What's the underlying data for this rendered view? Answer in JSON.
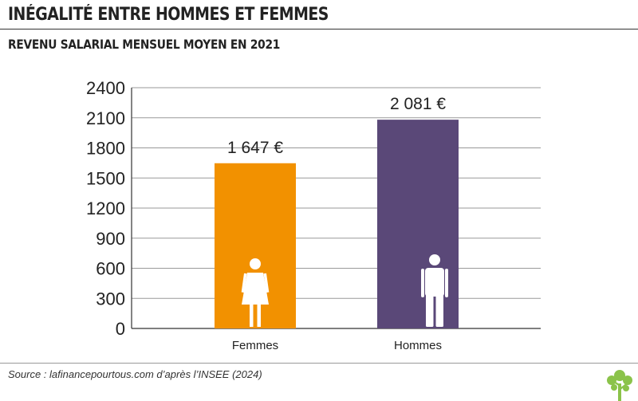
{
  "title": "INÉGALITÉ ENTRE HOMMES ET FEMMES",
  "subtitle": "REVENU SALARIAL MENSUEL MOYEN EN 2021",
  "source": "Source : lafinancepourtous.com d’après l’INSEE (2024)",
  "logo": {
    "icon": "tree-icon",
    "color": "#8bc34a"
  },
  "chart_data": {
    "type": "bar",
    "categories": [
      "Femmes",
      "Hommes"
    ],
    "values": [
      1647,
      2081
    ],
    "value_labels": [
      "1 647 €",
      "2 081 €"
    ],
    "colors": [
      "#f29100",
      "#5a4878"
    ],
    "icons": [
      "female-figure-icon",
      "male-figure-icon"
    ],
    "ylim": [
      0,
      2400
    ],
    "yticks": [
      0,
      300,
      600,
      900,
      1200,
      1500,
      1800,
      2100,
      2400
    ],
    "grid": true,
    "legend": "none"
  }
}
